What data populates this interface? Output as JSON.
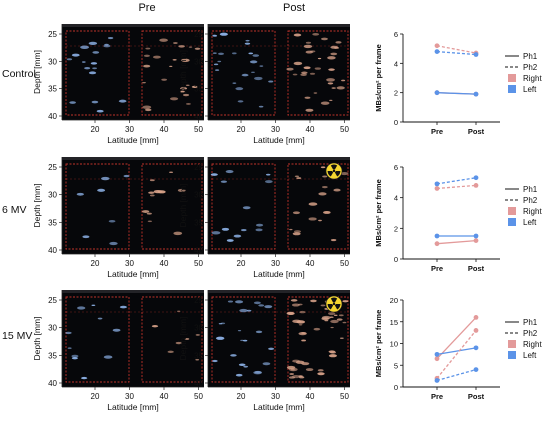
{
  "column_titles": [
    "Pre",
    "Post"
  ],
  "row_labels": [
    "Control",
    "6 MV",
    "15 MV"
  ],
  "us_axes": {
    "ylabel": "Depth [mm]",
    "xlabel": "Latitude [mm]",
    "yticks": [
      "25",
      "30",
      "35",
      "40"
    ],
    "xticks": [
      "20",
      "30",
      "40",
      "50"
    ]
  },
  "radiation_icon": "radiation-trefoil-icon",
  "colors": {
    "ph_line": "#111111",
    "right": "#e39a9a",
    "left": "#5b93e8",
    "roi_dashes": "#c0332b",
    "icon_bg": "#f5d630"
  },
  "legend": {
    "ph1": "Ph1",
    "ph2": "Ph2",
    "right": "Right",
    "left": "Left"
  },
  "chart_data": [
    {
      "type": "line",
      "row": "Control",
      "categories": [
        "Pre",
        "Post"
      ],
      "ylabel": "MBs/cm² per frame",
      "ylim": [
        0,
        6
      ],
      "yticks": [
        0,
        2,
        4,
        6
      ],
      "series": [
        {
          "name": "Ph1 Right",
          "style": "solid",
          "color": "right",
          "values": [
            2.0,
            1.9
          ]
        },
        {
          "name": "Ph1 Left",
          "style": "solid",
          "color": "left",
          "values": [
            2.0,
            1.9
          ]
        },
        {
          "name": "Ph2 Right",
          "style": "dashed",
          "color": "right",
          "values": [
            5.2,
            4.7
          ]
        },
        {
          "name": "Ph2 Left",
          "style": "dashed",
          "color": "left",
          "values": [
            4.8,
            4.6
          ]
        }
      ]
    },
    {
      "type": "line",
      "row": "6 MV",
      "categories": [
        "Pre",
        "Post"
      ],
      "ylabel": "MBs/cm² per frame",
      "ylim": [
        0,
        6
      ],
      "yticks": [
        0,
        2,
        4,
        6
      ],
      "series": [
        {
          "name": "Ph1 Right",
          "style": "solid",
          "color": "right",
          "values": [
            1.0,
            1.2
          ]
        },
        {
          "name": "Ph1 Left",
          "style": "solid",
          "color": "left",
          "values": [
            1.5,
            1.5
          ]
        },
        {
          "name": "Ph2 Right",
          "style": "dashed",
          "color": "right",
          "values": [
            4.6,
            4.8
          ]
        },
        {
          "name": "Ph2 Left",
          "style": "dashed",
          "color": "left",
          "values": [
            4.9,
            5.3
          ]
        }
      ]
    },
    {
      "type": "line",
      "row": "15 MV",
      "categories": [
        "Pre",
        "Post"
      ],
      "ylabel": "MBs/cm² per frame",
      "ylim": [
        0,
        20
      ],
      "yticks": [
        0,
        5,
        10,
        15,
        20
      ],
      "series": [
        {
          "name": "Ph1 Right",
          "style": "solid",
          "color": "right",
          "values": [
            6.5,
            16.0
          ]
        },
        {
          "name": "Ph1 Left",
          "style": "solid",
          "color": "left",
          "values": [
            7.5,
            9.0
          ]
        },
        {
          "name": "Ph2 Right",
          "style": "dashed",
          "color": "right",
          "values": [
            2.0,
            13.0
          ]
        },
        {
          "name": "Ph2 Left",
          "style": "dashed",
          "color": "left",
          "values": [
            1.5,
            4.0
          ]
        }
      ]
    }
  ]
}
